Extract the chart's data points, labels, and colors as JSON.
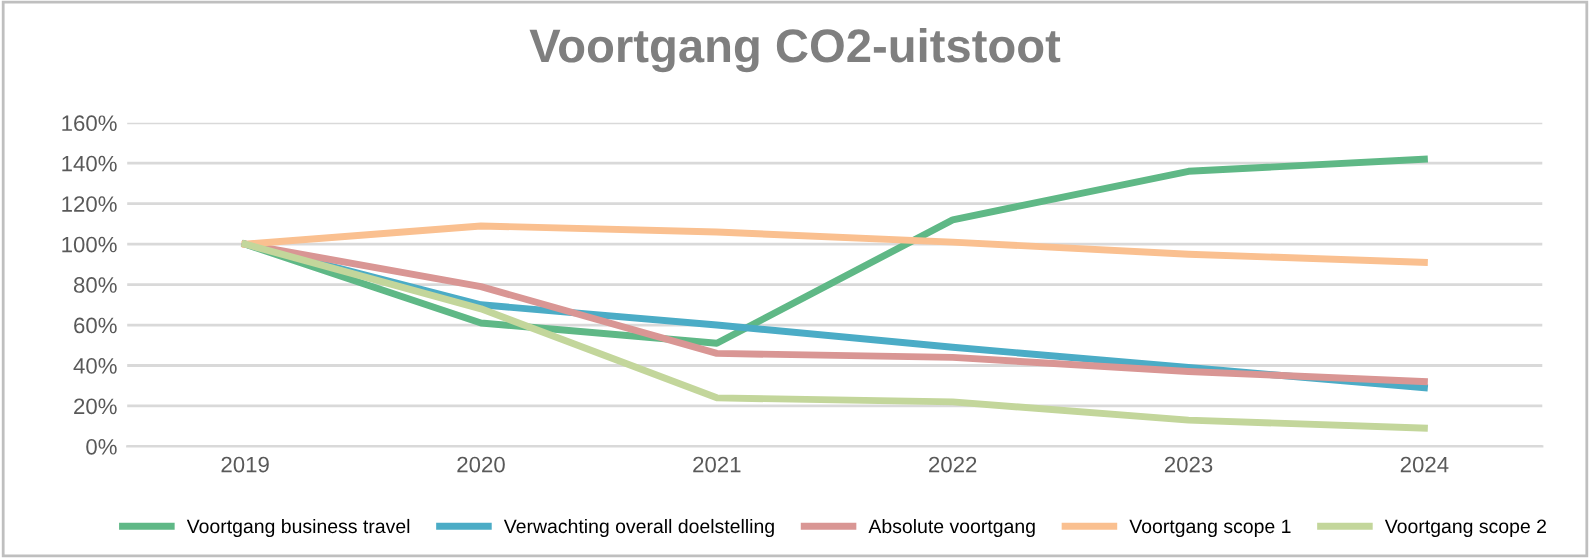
{
  "chart_data": {
    "type": "line",
    "title": "Voortgang CO2-uitstoot",
    "categories": [
      "2019",
      "2020",
      "2021",
      "2022",
      "2023",
      "2024"
    ],
    "series": [
      {
        "name": "Voortgang business travel",
        "color": "#5fb886",
        "values": [
          100,
          61,
          51,
          112,
          136,
          142
        ]
      },
      {
        "name": "Verwachting overall doelstelling",
        "color": "#4bacc6",
        "values": [
          100,
          70,
          60,
          49,
          39,
          29
        ]
      },
      {
        "name": "Absolute voortgang",
        "color": "#d99694",
        "values": [
          100,
          79,
          46,
          44,
          37,
          32
        ]
      },
      {
        "name": "Voortgang scope 1",
        "color": "#fac090",
        "values": [
          100,
          109,
          106,
          101,
          95,
          91
        ]
      },
      {
        "name": "Voortgang scope 2",
        "color": "#c3d69b",
        "values": [
          100,
          68,
          24,
          22,
          13,
          9
        ]
      }
    ],
    "ylim": [
      0,
      160
    ],
    "yticks": [
      {
        "value": 0,
        "label": "0%"
      },
      {
        "value": 20,
        "label": "20%"
      },
      {
        "value": 40,
        "label": "40%"
      },
      {
        "value": 60,
        "label": "60%"
      },
      {
        "value": 80,
        "label": "80%"
      },
      {
        "value": 100,
        "label": "100%"
      },
      {
        "value": 120,
        "label": "120%"
      },
      {
        "value": 140,
        "label": "140%"
      },
      {
        "value": 160,
        "label": "160%"
      }
    ],
    "grid": "y",
    "legend": "bottom",
    "marker": "none",
    "line_style": "solid"
  }
}
